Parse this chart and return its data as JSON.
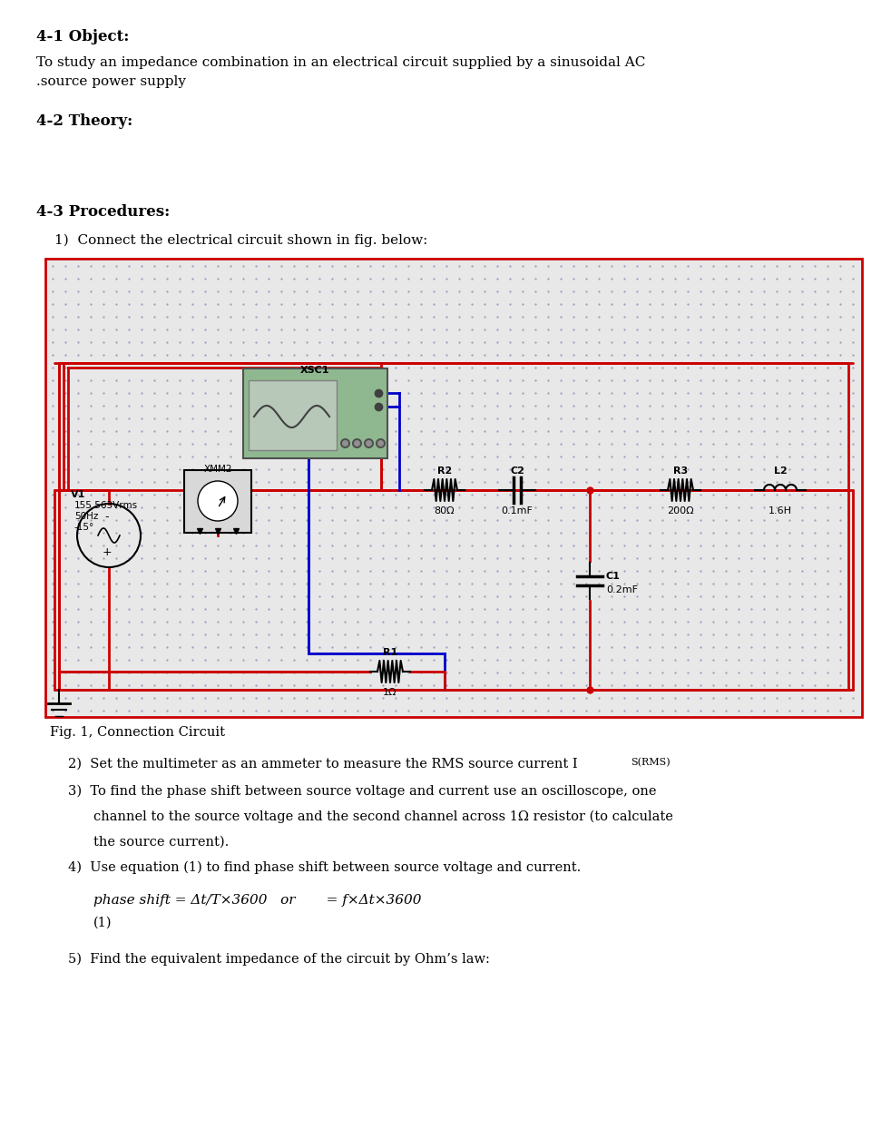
{
  "title_section": "4-1 Object:",
  "object_text": "To study an impedance combination in an electrical circuit supplied by a sinusoidal AC\n.source power supply",
  "theory_section": "4-2 Theory:",
  "procedures_section": "4-3 Procedures:",
  "step1": "1)  Connect the electrical circuit shown in fig. below:",
  "fig_caption": "Fig. 1, Connection Circuit",
  "step2": "2)  Set the multimeter as an ammeter to measure the RMS source current I",
  "step2_sub": "S(RMS)",
  "step3_line1": "3)  To find the phase shift between source voltage and current use an oscilloscope, one",
  "step3_line2": "channel to the source voltage and the second channel across 1Ω resistor (to calculate",
  "step3_line3": "the source current).",
  "step4": "4)  Use equation (1) to find phase shift between source voltage and current.",
  "formula_italic": "phase shift = Δt/T×3600   or       = f×Δt×3600",
  "formula_num": "(1)",
  "step5": "5)  Find the equivalent impedance of the circuit by Ohm’s law:",
  "bg_color": "#ffffff",
  "circuit_bg": "#d4e8d4",
  "circuit_dot_color": "#b0b0c8",
  "wire_red": "#cc0000",
  "wire_blue": "#0000cc",
  "wire_black": "#000000",
  "component_color": "#000000",
  "v1_label": "V1",
  "v1_value1": "155.563Vrms",
  "v1_value2": "50Hz",
  "v1_value3": "-15°",
  "xmm2_label": "XMM2",
  "xsc1_label": "XSC1",
  "r1_label": "R1",
  "r1_value": "1Ω",
  "r2_label": "R2",
  "r2_value": "80Ω",
  "r3_label": "R3",
  "r3_value": "200Ω",
  "c1_label": "C1",
  "c1_value": "0.2mF",
  "c2_label": "C2",
  "c2_value": "0.1mF",
  "l2_label": "L2",
  "l2_value": "1.6H"
}
